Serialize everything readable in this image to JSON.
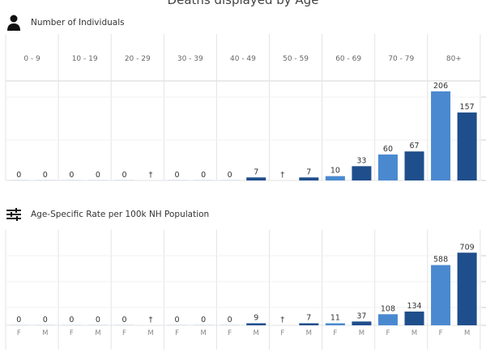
{
  "title": "Deaths displayed by Age",
  "age_groups": [
    "0 - 9",
    "10 - 19",
    "20 - 29",
    "30 - 39",
    "40 - 49",
    "50 - 59",
    "60 - 69",
    "70 - 79",
    "80+"
  ],
  "colors": {
    "F": "#4a89d0",
    "M": "#1f4e8c",
    "grid": "#e3e3e3"
  },
  "chart_data": [
    {
      "type": "bar",
      "title": "Number of Individuals",
      "icon": "person-icon",
      "categories": [
        "0 - 9",
        "10 - 19",
        "20 - 29",
        "30 - 39",
        "40 - 49",
        "50 - 59",
        "60 - 69",
        "70 - 79",
        "80+"
      ],
      "series": [
        {
          "name": "F",
          "values": [
            0,
            0,
            0,
            0,
            0,
            null,
            10,
            60,
            206
          ],
          "labels": [
            "0",
            "0",
            "0",
            "0",
            "0",
            "†",
            "10",
            "60",
            "206"
          ]
        },
        {
          "name": "M",
          "values": [
            0,
            0,
            null,
            0,
            7,
            7,
            33,
            67,
            157
          ],
          "labels": [
            "0",
            "0",
            "†",
            "0",
            "7",
            "7",
            "33",
            "67",
            "157"
          ]
        }
      ],
      "ylim": [
        0,
        230
      ]
    },
    {
      "type": "bar",
      "title": "Age-Specific Rate per 100k NH Population",
      "icon": "sliders-icon",
      "categories": [
        "0 - 9",
        "10 - 19",
        "20 - 29",
        "30 - 39",
        "40 - 49",
        "50 - 59",
        "60 - 69",
        "70 - 79",
        "80+"
      ],
      "series": [
        {
          "name": "F",
          "values": [
            0,
            0,
            0,
            0,
            0,
            null,
            11,
            108,
            588
          ],
          "labels": [
            "0",
            "0",
            "0",
            "0",
            "0",
            "†",
            "11",
            "108",
            "588"
          ]
        },
        {
          "name": "M",
          "values": [
            0,
            0,
            null,
            0,
            9,
            7,
            37,
            134,
            709
          ],
          "labels": [
            "0",
            "0",
            "†",
            "0",
            "9",
            "7",
            "37",
            "134",
            "709"
          ]
        }
      ],
      "ylim": [
        0,
        790
      ]
    }
  ]
}
